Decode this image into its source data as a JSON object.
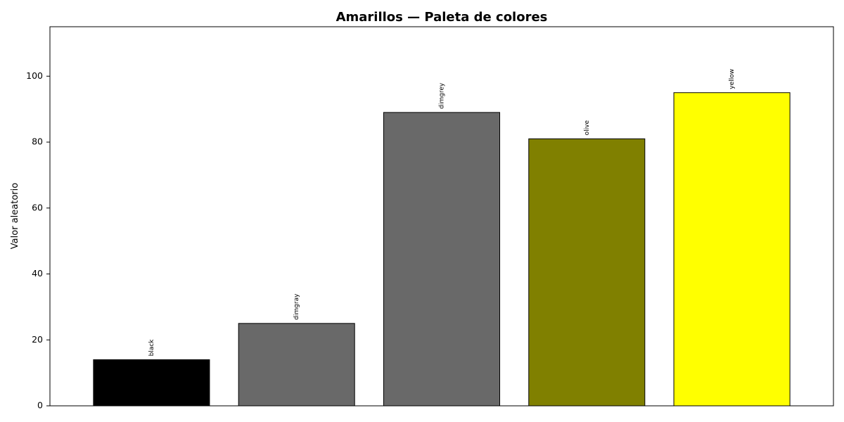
{
  "chart_data": {
    "type": "bar",
    "title": "Amarillos — Paleta de colores",
    "xlabel": "",
    "ylabel": "Valor aleatorio",
    "ylim": [
      0,
      115
    ],
    "yticks": [
      0,
      20,
      40,
      60,
      80,
      100
    ],
    "ytick_labels": [
      "0",
      "20",
      "40",
      "60",
      "80",
      "100"
    ],
    "grid": false,
    "categories": [
      "black",
      "dimgray",
      "dimgrey",
      "olive",
      "yellow"
    ],
    "values": [
      14,
      25,
      89,
      81,
      95
    ],
    "bar_labels": [
      "black",
      "dimgray",
      "dimgrey",
      "olive",
      "yellow"
    ],
    "colors": [
      "#000000",
      "#696969",
      "#696969",
      "#808000",
      "#ffff00"
    ],
    "edge_color": "#000000"
  }
}
